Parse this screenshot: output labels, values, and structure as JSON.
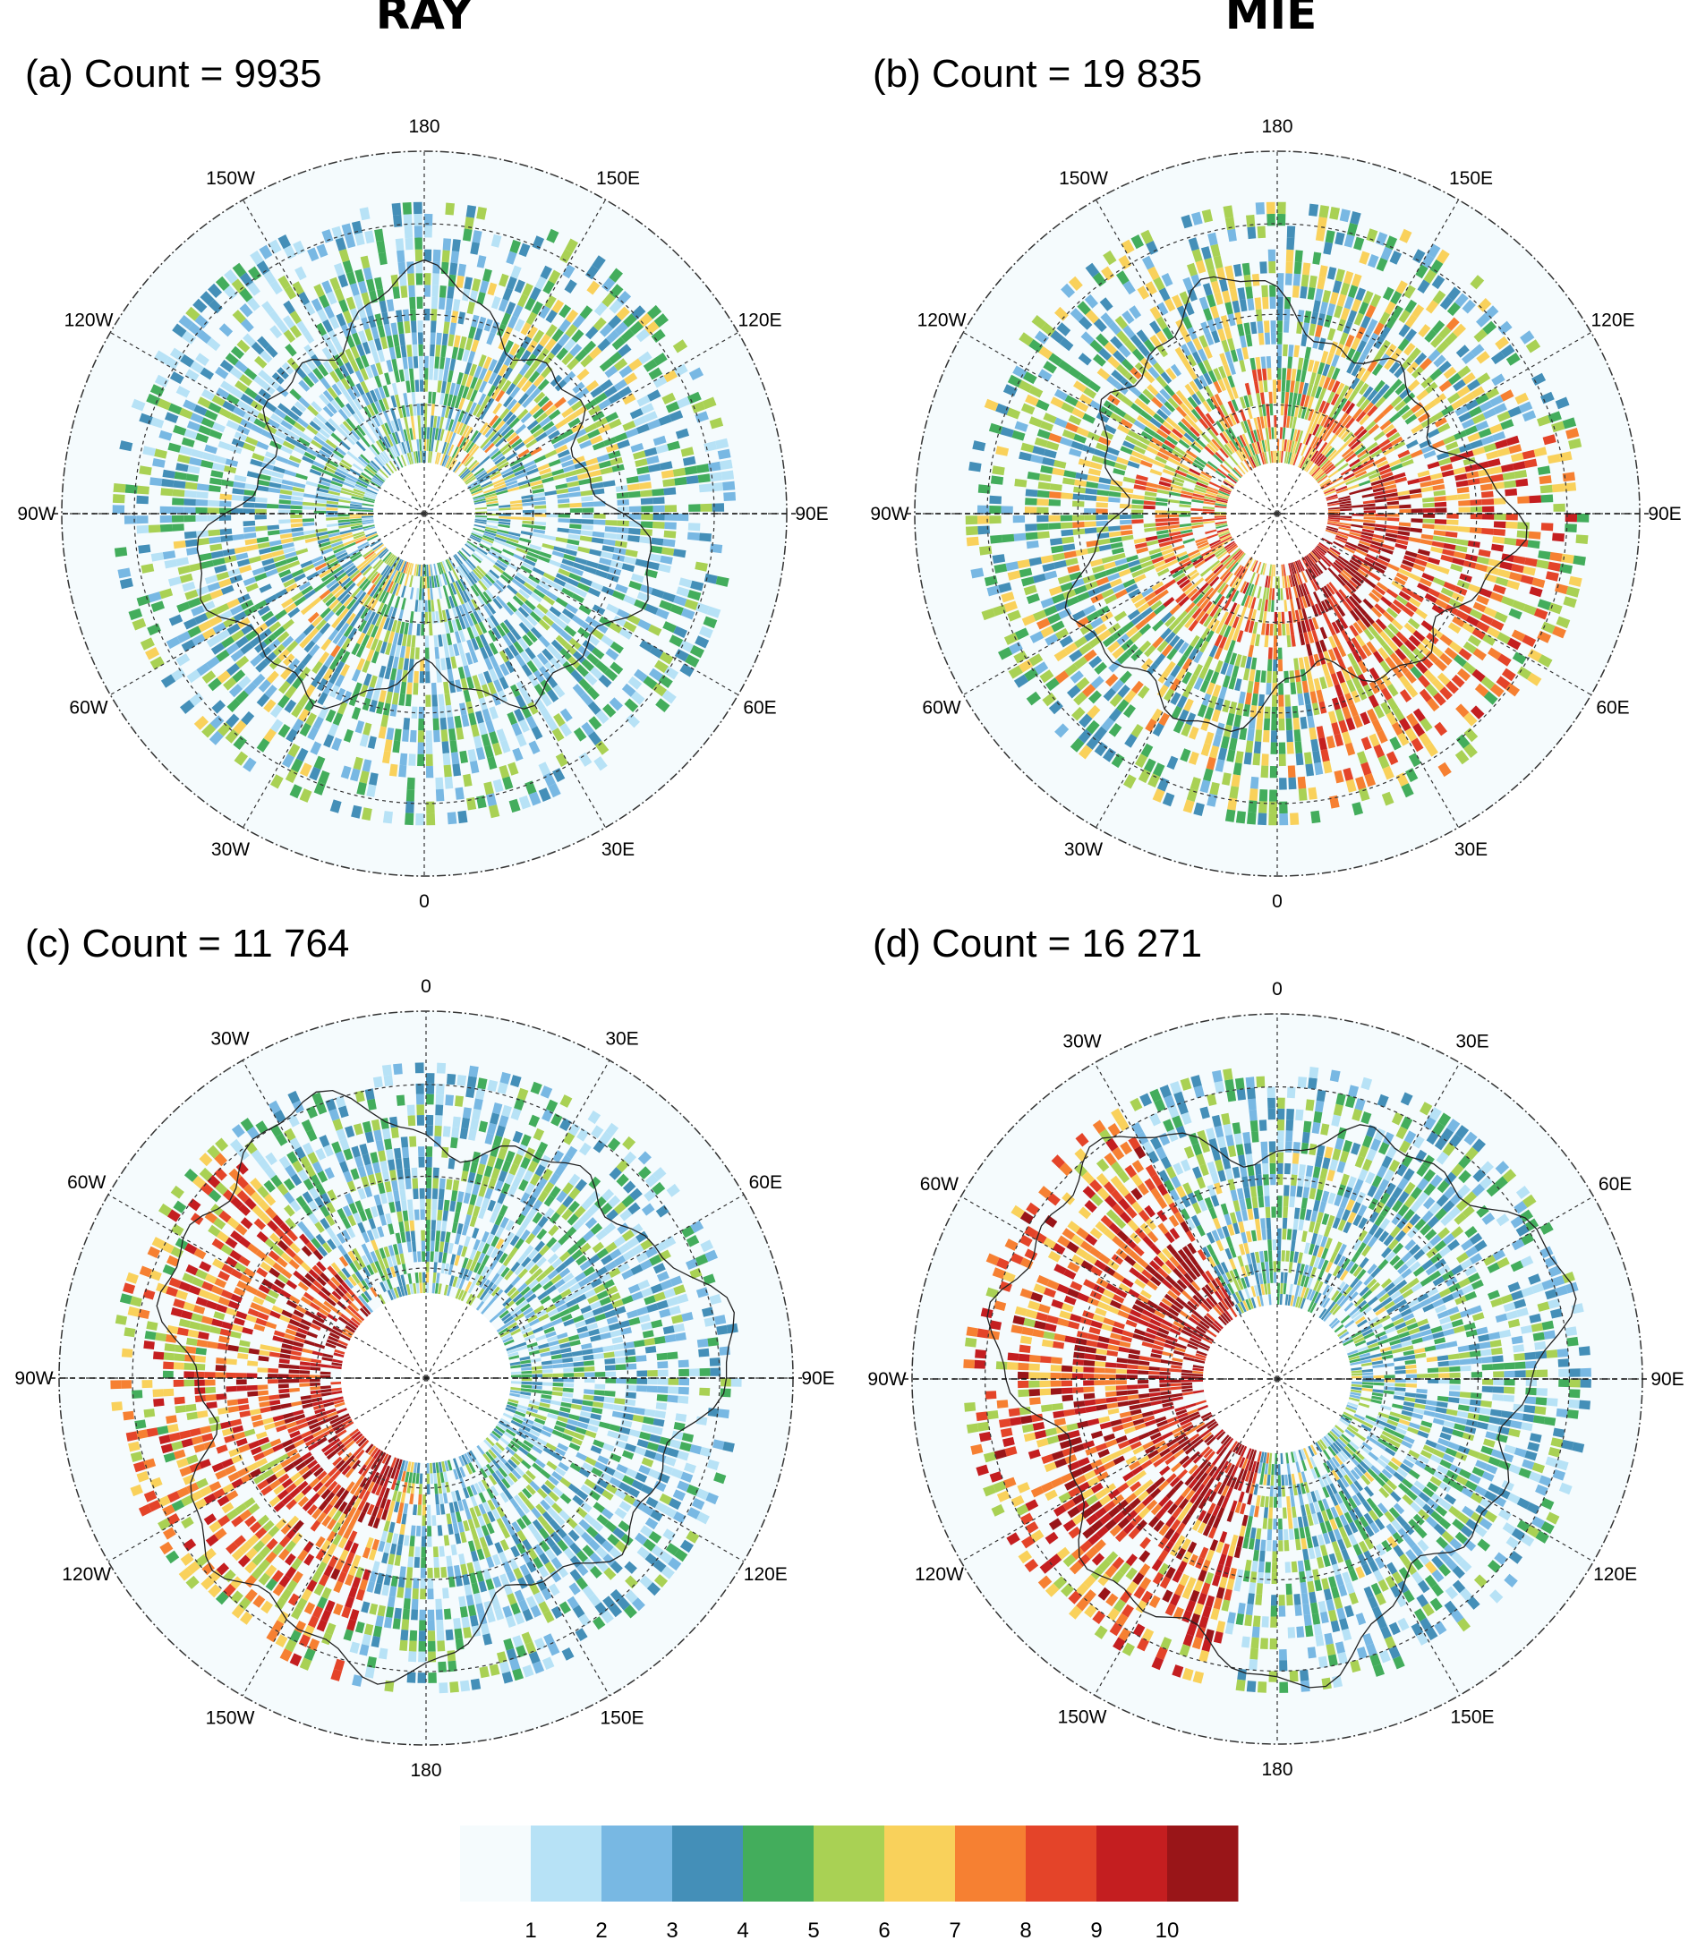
{
  "columns": [
    "RAY",
    "MIE"
  ],
  "colorbar": {
    "labels": [
      "1",
      "2",
      "3",
      "4",
      "5",
      "6",
      "7",
      "8",
      "9",
      "10"
    ],
    "colors": [
      "#f5fbfd",
      "#b7e2f6",
      "#78b8e3",
      "#448fb8",
      "#43ad5c",
      "#a9d154",
      "#f9d15b",
      "#f68032",
      "#e44429",
      "#c41e20",
      "#991518"
    ]
  },
  "chart_data": [
    {
      "type": "heatmap",
      "projection": "north-polar-stereographic",
      "title": "(a) Count = 9935",
      "count": 9935,
      "column": "RAY",
      "lon_labels": [
        "180",
        "150E",
        "120E",
        "90E",
        "60E",
        "30E",
        "0",
        "30W",
        "60W",
        "90W",
        "120W",
        "150W"
      ],
      "intensity": "low-moderate, mostly 1-5, scattered 6-9"
    },
    {
      "type": "heatmap",
      "projection": "north-polar-stereographic",
      "title": "(b) Count = 19 835",
      "count": 19835,
      "column": "MIE",
      "lon_labels": [
        "180",
        "150E",
        "120E",
        "90E",
        "60E",
        "30E",
        "0",
        "30W",
        "60W",
        "90W",
        "120W",
        "150W"
      ],
      "intensity": "high near pole and 30E-90E sector, values up to 10"
    },
    {
      "type": "heatmap",
      "projection": "south-polar-stereographic",
      "title": "(c) Count = 11 764",
      "count": 11764,
      "column": "RAY",
      "lon_labels": [
        "0",
        "30E",
        "60E",
        "90E",
        "120E",
        "150E",
        "180",
        "150W",
        "120W",
        "90W",
        "60W",
        "30W"
      ],
      "intensity": "high in 60W-150W sector near pole, low in east"
    },
    {
      "type": "heatmap",
      "projection": "south-polar-stereographic",
      "title": "(d) Count = 16 271",
      "count": 16271,
      "column": "MIE",
      "lon_labels": [
        "0",
        "30E",
        "60E",
        "90E",
        "120E",
        "150E",
        "180",
        "150W",
        "120W",
        "90W",
        "60W",
        "30W"
      ],
      "intensity": "very high in 60W-150W sector near pole, low-moderate in east"
    }
  ]
}
